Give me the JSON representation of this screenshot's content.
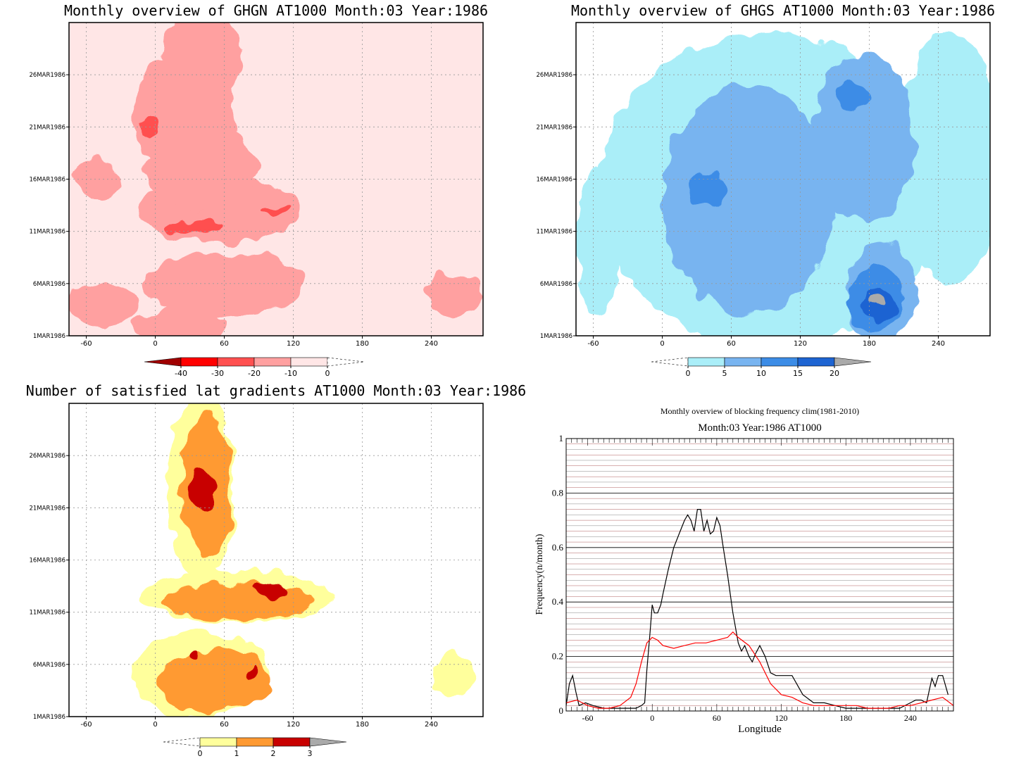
{
  "chart_data": [
    {
      "type": "heatmap",
      "title": "Monthly overview of GHGN AT1000 Month:03 Year:1986",
      "x_ticks": [
        -60,
        0,
        60,
        120,
        180,
        240
      ],
      "y_ticks": [
        "1MAR1986",
        "6MAR1986",
        "11MAR1986",
        "16MAR1986",
        "21MAR1986",
        "26MAR1986"
      ],
      "xlim": [
        -75,
        285
      ],
      "ylim_days": [
        1,
        31
      ],
      "colorbar": {
        "labels": [
          "-40",
          "-30",
          "-20",
          "-10",
          "0"
        ],
        "colors": [
          "#a00000",
          "#ff0000",
          "#ff5050",
          "#ffa0a0",
          "#ffe6e6",
          "#ffffff"
        ],
        "extend": "both"
      },
      "regions": [
        {
          "level": -10,
          "color": "#ffa0a0",
          "lon": 25,
          "day": 22,
          "rlon": 45,
          "rday": 6
        },
        {
          "level": -10,
          "color": "#ffa0a0",
          "lon": 40,
          "day": 28,
          "rlon": 35,
          "rday": 4
        },
        {
          "level": -10,
          "color": "#ffa0a0",
          "lon": 55,
          "day": 13,
          "rlon": 70,
          "rday": 3
        },
        {
          "level": -10,
          "color": "#ffa0a0",
          "lon": 40,
          "day": 17,
          "rlon": 50,
          "rday": 4
        },
        {
          "level": -10,
          "color": "#ffa0a0",
          "lon": 60,
          "day": 6,
          "rlon": 70,
          "rday": 3
        },
        {
          "level": -10,
          "color": "#ffa0a0",
          "lon": 20,
          "day": 2,
          "rlon": 40,
          "rday": 2
        },
        {
          "level": -10,
          "color": "#ffa0a0",
          "lon": -45,
          "day": 4,
          "rlon": 30,
          "rday": 2
        },
        {
          "level": -10,
          "color": "#ffa0a0",
          "lon": 260,
          "day": 5,
          "rlon": 25,
          "rday": 2
        },
        {
          "level": -10,
          "color": "#ffa0a0",
          "lon": -50,
          "day": 16,
          "rlon": 20,
          "rday": 2
        },
        {
          "level": -20,
          "color": "#ff5050",
          "lon": -5,
          "day": 21,
          "rlon": 8,
          "rday": 1
        },
        {
          "level": -20,
          "color": "#ff5050",
          "lon": 35,
          "day": 11.5,
          "rlon": 25,
          "rday": 0.6
        },
        {
          "level": -20,
          "color": "#ff5050",
          "lon": 105,
          "day": 13,
          "rlon": 12,
          "rday": 0.4
        }
      ]
    },
    {
      "type": "heatmap",
      "title": "Monthly overview of GHGS AT1000 Month:03 Year:1986",
      "x_ticks": [
        -60,
        0,
        60,
        120,
        180,
        240
      ],
      "y_ticks": [
        "1MAR1986",
        "6MAR1986",
        "11MAR1986",
        "16MAR1986",
        "21MAR1986",
        "26MAR1986"
      ],
      "xlim": [
        -75,
        285
      ],
      "ylim_days": [
        1,
        31
      ],
      "colorbar": {
        "labels": [
          "0",
          "5",
          "10",
          "15",
          "20"
        ],
        "colors": [
          "#ffffff",
          "#aaeef8",
          "#78b4f0",
          "#3c8ce6",
          "#1e64d2",
          "#aaaaaa"
        ],
        "extend": "both"
      },
      "regions": [
        {
          "level": 0,
          "color": "#aaeef8",
          "lon": 95,
          "day": 15,
          "rlon": 150,
          "rday": 15
        },
        {
          "level": 0,
          "color": "#aaeef8",
          "lon": 250,
          "day": 18,
          "rlon": 45,
          "rday": 12
        },
        {
          "level": 0,
          "color": "#aaeef8",
          "lon": -55,
          "day": 10,
          "rlon": 20,
          "rday": 7
        },
        {
          "level": 5,
          "color": "#78b4f0",
          "lon": 75,
          "day": 14,
          "rlon": 75,
          "rday": 11
        },
        {
          "level": 5,
          "color": "#78b4f0",
          "lon": 175,
          "day": 20,
          "rlon": 45,
          "rday": 8
        },
        {
          "level": 5,
          "color": "#78b4f0",
          "lon": 190,
          "day": 5,
          "rlon": 30,
          "rday": 5
        },
        {
          "level": 10,
          "color": "#3c8ce6",
          "lon": 40,
          "day": 15,
          "rlon": 15,
          "rday": 1.5
        },
        {
          "level": 10,
          "color": "#3c8ce6",
          "lon": 185,
          "day": 4.5,
          "rlon": 25,
          "rday": 3
        },
        {
          "level": 10,
          "color": "#3c8ce6",
          "lon": 165,
          "day": 24,
          "rlon": 15,
          "rday": 1.5
        },
        {
          "level": 15,
          "color": "#1e64d2",
          "lon": 190,
          "day": 4,
          "rlon": 16,
          "rday": 1.6
        },
        {
          "level": 20,
          "color": "#aaaaaa",
          "lon": 186,
          "day": 4.3,
          "rlon": 8,
          "rday": 0.5
        }
      ]
    },
    {
      "type": "heatmap",
      "title": "Number of satisfied lat gradients AT1000 Month:03 Year:1986",
      "x_ticks": [
        -60,
        0,
        60,
        120,
        180,
        240
      ],
      "y_ticks": [
        "1MAR1986",
        "6MAR1986",
        "11MAR1986",
        "16MAR1986",
        "21MAR1986",
        "26MAR1986"
      ],
      "xlim": [
        -75,
        285
      ],
      "ylim_days": [
        1,
        31
      ],
      "colorbar": {
        "labels": [
          "0",
          "1",
          "2",
          "3"
        ],
        "colors": [
          "#ffffff",
          "#ffff9c",
          "#ff9a32",
          "#c80000",
          "#aaaaaa"
        ],
        "extend": "both"
      },
      "regions": [
        {
          "level": 1,
          "color": "#ffff9c",
          "lon": 40,
          "day": 23,
          "rlon": 30,
          "rday": 9
        },
        {
          "level": 1,
          "color": "#ffff9c",
          "lon": 70,
          "day": 12.5,
          "rlon": 85,
          "rday": 2.5
        },
        {
          "level": 1,
          "color": "#ffff9c",
          "lon": 40,
          "day": 5,
          "rlon": 60,
          "rday": 4
        },
        {
          "level": 1,
          "color": "#ffff9c",
          "lon": 260,
          "day": 5,
          "rlon": 20,
          "rday": 2
        },
        {
          "level": 2,
          "color": "#ff9a32",
          "lon": 45,
          "day": 23,
          "rlon": 22,
          "rday": 7
        },
        {
          "level": 2,
          "color": "#ff9a32",
          "lon": 70,
          "day": 12,
          "rlon": 65,
          "rday": 1.8
        },
        {
          "level": 2,
          "color": "#ff9a32",
          "lon": 50,
          "day": 4.5,
          "rlon": 50,
          "rday": 3
        },
        {
          "level": 3,
          "color": "#c80000",
          "lon": 40,
          "day": 22.5,
          "rlon": 10,
          "rday": 2
        },
        {
          "level": 3,
          "color": "#c80000",
          "lon": 100,
          "day": 13,
          "rlon": 15,
          "rday": 0.8
        },
        {
          "level": 3,
          "color": "#c80000",
          "lon": 35,
          "day": 7,
          "rlon": 5,
          "rday": 0.5
        },
        {
          "level": 3,
          "color": "#c80000",
          "lon": 85,
          "day": 5,
          "rlon": 4,
          "rday": 1
        }
      ]
    },
    {
      "type": "line",
      "title": "Monthly overview of blocking frequency clim(1981-2010)",
      "subtitle": "Month:03 Year:1986  AT1000",
      "xlabel": "Longitude",
      "ylabel": "Frequency(n/month)",
      "xlim": [
        -80,
        280
      ],
      "ylim": [
        0,
        1
      ],
      "x_ticks": [
        -60,
        0,
        60,
        120,
        180,
        240
      ],
      "y_ticks": [
        0,
        0.2,
        0.4,
        0.6,
        0.8,
        1
      ],
      "y_tick_labels": [
        "0",
        "0.2",
        "0.4",
        "0.6",
        "0.8",
        "1"
      ],
      "grid": true,
      "series": [
        {
          "color": "#000000",
          "x": [
            -80,
            -77,
            -74,
            -71,
            -68,
            -62,
            -55,
            -45,
            -35,
            -25,
            -15,
            -10,
            -7,
            -5,
            -2,
            0,
            2,
            5,
            8,
            10,
            15,
            20,
            25,
            30,
            33,
            36,
            39,
            42,
            45,
            48,
            51,
            54,
            57,
            60,
            63,
            66,
            70,
            75,
            80,
            83,
            86,
            90,
            93,
            96,
            100,
            105,
            110,
            115,
            120,
            130,
            140,
            150,
            160,
            170,
            180,
            190,
            200,
            210,
            220,
            230,
            240,
            245,
            250,
            255,
            260,
            263,
            266,
            270,
            275
          ],
          "y": [
            0.02,
            0.1,
            0.13,
            0.07,
            0.02,
            0.03,
            0.02,
            0.01,
            0.01,
            0.01,
            0.01,
            0.02,
            0.03,
            0.15,
            0.29,
            0.39,
            0.36,
            0.36,
            0.39,
            0.43,
            0.52,
            0.6,
            0.65,
            0.7,
            0.72,
            0.7,
            0.66,
            0.74,
            0.74,
            0.66,
            0.7,
            0.65,
            0.66,
            0.71,
            0.68,
            0.6,
            0.5,
            0.36,
            0.25,
            0.22,
            0.24,
            0.2,
            0.18,
            0.21,
            0.24,
            0.2,
            0.14,
            0.13,
            0.13,
            0.13,
            0.06,
            0.03,
            0.03,
            0.02,
            0.01,
            0.01,
            0.01,
            0.01,
            0.01,
            0.01,
            0.03,
            0.04,
            0.04,
            0.03,
            0.12,
            0.09,
            0.13,
            0.13,
            0.06
          ]
        },
        {
          "color": "#ff0000",
          "x": [
            -80,
            -70,
            -60,
            -50,
            -40,
            -30,
            -20,
            -15,
            -10,
            -5,
            0,
            5,
            10,
            20,
            30,
            40,
            50,
            60,
            70,
            75,
            80,
            90,
            100,
            110,
            120,
            130,
            140,
            150,
            160,
            170,
            180,
            190,
            200,
            210,
            220,
            230,
            240,
            250,
            260,
            270,
            280
          ],
          "y": [
            0.03,
            0.04,
            0.02,
            0.01,
            0.01,
            0.02,
            0.05,
            0.1,
            0.18,
            0.25,
            0.27,
            0.26,
            0.24,
            0.23,
            0.24,
            0.25,
            0.25,
            0.26,
            0.27,
            0.29,
            0.27,
            0.24,
            0.18,
            0.1,
            0.06,
            0.05,
            0.03,
            0.02,
            0.02,
            0.02,
            0.02,
            0.02,
            0.01,
            0.01,
            0.01,
            0.02,
            0.02,
            0.03,
            0.04,
            0.05,
            0.02
          ]
        }
      ]
    }
  ]
}
